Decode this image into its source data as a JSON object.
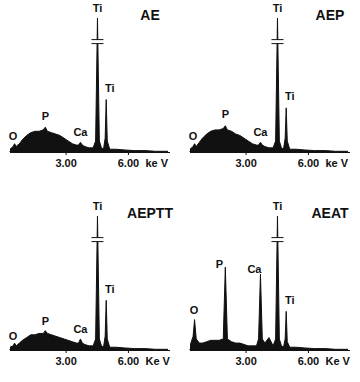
{
  "chart_data": [
    {
      "type": "area",
      "title": "AE",
      "x_label": "ke V",
      "color": "#111111",
      "tick_labels": "x",
      "xlim": [
        0.3,
        8.0
      ],
      "ylim": [
        0,
        100
      ],
      "xticks": [
        {
          "value": 3,
          "label": "3.00"
        },
        {
          "value": 6,
          "label": "6.00"
        }
      ],
      "x": [
        0.3,
        0.45,
        0.52,
        0.6,
        0.75,
        0.9,
        1.1,
        1.3,
        1.5,
        1.7,
        1.9,
        2.0,
        2.1,
        2.3,
        2.5,
        2.7,
        2.9,
        3.1,
        3.3,
        3.5,
        3.6,
        3.69,
        3.78,
        3.9,
        4.1,
        4.3,
        4.42,
        4.51,
        4.6,
        4.7,
        4.8,
        4.88,
        4.93,
        4.98,
        5.1,
        5.4,
        5.8,
        6.3,
        6.8,
        7.3,
        7.9
      ],
      "values": [
        2,
        4,
        6,
        4,
        6,
        9,
        12,
        14,
        15,
        15,
        16,
        18,
        15,
        14,
        13,
        12,
        10,
        8,
        6,
        5,
        5,
        7,
        5,
        4,
        3,
        3,
        8,
        97,
        8,
        3,
        2,
        10,
        38,
        8,
        2,
        2,
        1.5,
        1,
        1,
        0.5,
        0.5
      ],
      "annotations": [
        {
          "text": "O",
          "x": 0.45,
          "y": 7
        },
        {
          "text": "P",
          "x": 2.0,
          "y": 22
        },
        {
          "text": "Ca",
          "x": 3.69,
          "y": 10
        },
        {
          "text": "Ti",
          "x": 4.51,
          "y": 100
        },
        {
          "text": "Ti",
          "x": 5.1,
          "y": 42
        }
      ]
    },
    {
      "type": "area",
      "title": "AEP",
      "x_label": "ke V",
      "color": "#111111",
      "tick_labels": "x",
      "xlim": [
        0.3,
        8.0
      ],
      "ylim": [
        0,
        100
      ],
      "xticks": [
        {
          "value": 3,
          "label": "3.00"
        },
        {
          "value": 6,
          "label": "6.00"
        }
      ],
      "x": [
        0.3,
        0.45,
        0.52,
        0.6,
        0.75,
        0.9,
        1.1,
        1.3,
        1.5,
        1.7,
        1.9,
        2.0,
        2.1,
        2.3,
        2.5,
        2.7,
        2.9,
        3.1,
        3.3,
        3.5,
        3.6,
        3.69,
        3.78,
        3.9,
        4.1,
        4.3,
        4.42,
        4.51,
        4.6,
        4.7,
        4.8,
        4.88,
        4.93,
        4.98,
        5.1,
        5.4,
        5.8,
        6.3,
        6.8,
        7.3,
        7.9
      ],
      "values": [
        2,
        4,
        6,
        4,
        7,
        10,
        13,
        15,
        16,
        16,
        17,
        19,
        16,
        15,
        13,
        12,
        10,
        8,
        6,
        5,
        5,
        7,
        5,
        4,
        3,
        3,
        8,
        97,
        8,
        3,
        2,
        10,
        32,
        8,
        2,
        2,
        1.5,
        1,
        1,
        0.5,
        0.5
      ],
      "annotations": [
        {
          "text": "O",
          "x": 0.45,
          "y": 7
        },
        {
          "text": "P",
          "x": 2.0,
          "y": 23
        },
        {
          "text": "Ca",
          "x": 3.69,
          "y": 10
        },
        {
          "text": "Ti",
          "x": 4.51,
          "y": 100
        },
        {
          "text": "Ti",
          "x": 5.1,
          "y": 36
        }
      ]
    },
    {
      "type": "area",
      "title": "AEPTT",
      "x_label": "Ke V",
      "color": "#111111",
      "tick_labels": "x",
      "xlim": [
        0.3,
        8.0
      ],
      "ylim": [
        0,
        100
      ],
      "xticks": [
        {
          "value": 3,
          "label": "3.00"
        },
        {
          "value": 6,
          "label": "6.00"
        }
      ],
      "x": [
        0.3,
        0.45,
        0.52,
        0.6,
        0.75,
        0.9,
        1.1,
        1.3,
        1.5,
        1.7,
        1.9,
        2.0,
        2.1,
        2.3,
        2.5,
        2.7,
        2.9,
        3.1,
        3.3,
        3.5,
        3.6,
        3.69,
        3.78,
        3.9,
        4.1,
        4.3,
        4.42,
        4.51,
        4.6,
        4.7,
        4.8,
        4.88,
        4.93,
        4.98,
        5.1,
        5.4,
        5.8,
        6.3,
        6.8,
        7.3,
        7.9
      ],
      "values": [
        2,
        3,
        5,
        3,
        5,
        7,
        9,
        11,
        11,
        12,
        12,
        14,
        12,
        11,
        10,
        9,
        8,
        7,
        6,
        5,
        5,
        8,
        5,
        4,
        3,
        3,
        8,
        97,
        8,
        3,
        2,
        10,
        36,
        8,
        2,
        2,
        1.5,
        1,
        1,
        0.5,
        0.5
      ],
      "annotations": [
        {
          "text": "O",
          "x": 0.45,
          "y": 6
        },
        {
          "text": "P",
          "x": 2.0,
          "y": 17
        },
        {
          "text": "Ca",
          "x": 3.69,
          "y": 11
        },
        {
          "text": "Ti",
          "x": 4.51,
          "y": 100
        },
        {
          "text": "Ti",
          "x": 5.1,
          "y": 40
        }
      ]
    },
    {
      "type": "area",
      "title": "AEAT",
      "x_label": "Ke V",
      "color": "#111111",
      "tick_labels": "x",
      "xlim": [
        0.3,
        8.0
      ],
      "ylim": [
        0,
        100
      ],
      "xticks": [
        {
          "value": 3,
          "label": "3.00"
        },
        {
          "value": 6,
          "label": "6.00"
        }
      ],
      "x": [
        0.3,
        0.45,
        0.52,
        0.6,
        0.75,
        0.9,
        1.1,
        1.3,
        1.5,
        1.7,
        1.9,
        2.0,
        2.1,
        2.3,
        2.5,
        2.7,
        2.9,
        3.1,
        3.3,
        3.5,
        3.6,
        3.69,
        3.78,
        3.9,
        4.1,
        4.3,
        4.42,
        4.51,
        4.6,
        4.7,
        4.8,
        4.88,
        4.93,
        4.98,
        5.1,
        5.4,
        5.8,
        6.3,
        6.8,
        7.3,
        7.9
      ],
      "values": [
        3,
        10,
        22,
        8,
        5,
        5,
        6,
        7,
        7,
        7,
        8,
        60,
        8,
        6,
        5,
        5,
        4,
        3,
        3,
        3,
        8,
        55,
        8,
        5,
        9,
        3,
        8,
        97,
        8,
        3,
        2,
        8,
        28,
        6,
        2,
        2,
        1.5,
        1,
        1,
        0.5,
        0.5
      ],
      "annotations": [
        {
          "text": "O",
          "x": 0.5,
          "y": 25
        },
        {
          "text": "P",
          "x": 1.72,
          "y": 58
        },
        {
          "text": "Ca",
          "x": 3.4,
          "y": 54
        },
        {
          "text": "Ti",
          "x": 4.51,
          "y": 100
        },
        {
          "text": "Ti",
          "x": 5.1,
          "y": 32
        }
      ]
    }
  ]
}
